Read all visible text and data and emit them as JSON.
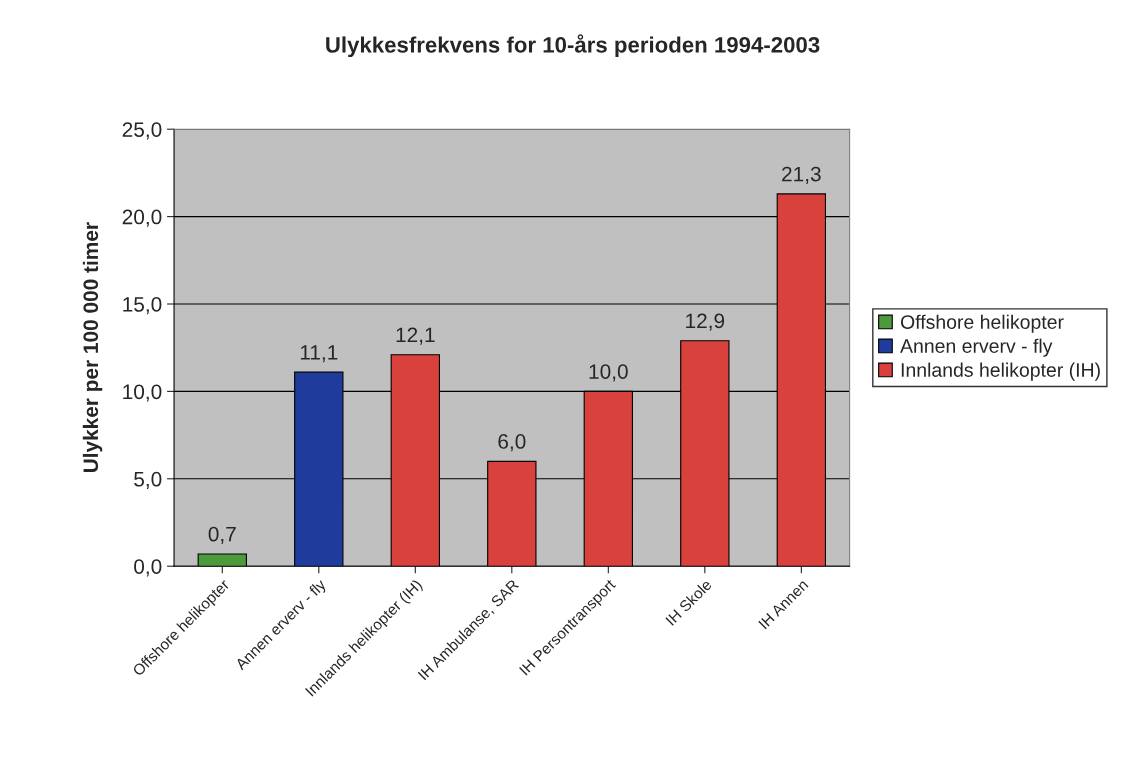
{
  "chart_data": {
    "type": "bar",
    "title": "Ulykkesfrekvens for 10-års perioden 1994-2003",
    "ylabel": "Ulykker per 100 000 timer",
    "categories": [
      "Offshore helikopter",
      "Annen erverv - fly",
      "Innlands helikopter (IH)",
      "IH Ambulanse, SAR",
      "IH Persontransport",
      "IH Skole",
      "IH Annen"
    ],
    "series": [
      {
        "name": "Offshore helikopter",
        "color": "#4c9a3c",
        "values": [
          0.7,
          null,
          null,
          null,
          null,
          null,
          null
        ],
        "value_labels": [
          "0,7",
          null,
          null,
          null,
          null,
          null,
          null
        ]
      },
      {
        "name": "Annen erverv - fly",
        "color": "#1f3c9c",
        "values": [
          null,
          11.1,
          null,
          null,
          null,
          null,
          null
        ],
        "value_labels": [
          null,
          "11,1",
          null,
          null,
          null,
          null,
          null
        ]
      },
      {
        "name": "Innlands helikopter (IH)",
        "color": "#d8413c",
        "values": [
          null,
          null,
          12.1,
          6.0,
          10.0,
          12.9,
          21.3
        ],
        "value_labels": [
          null,
          null,
          "12,1",
          "6,0",
          "10,0",
          "12,9",
          "21,3"
        ]
      }
    ],
    "ylim": [
      0,
      25
    ],
    "yticks": [
      {
        "value": 0,
        "label": "0,0"
      },
      {
        "value": 5,
        "label": "5,0"
      },
      {
        "value": 10,
        "label": "10,0"
      },
      {
        "value": 15,
        "label": "15,0"
      },
      {
        "value": 20,
        "label": "20,0"
      },
      {
        "value": 25,
        "label": "25,0"
      }
    ],
    "grid": "y",
    "legend": "right"
  }
}
